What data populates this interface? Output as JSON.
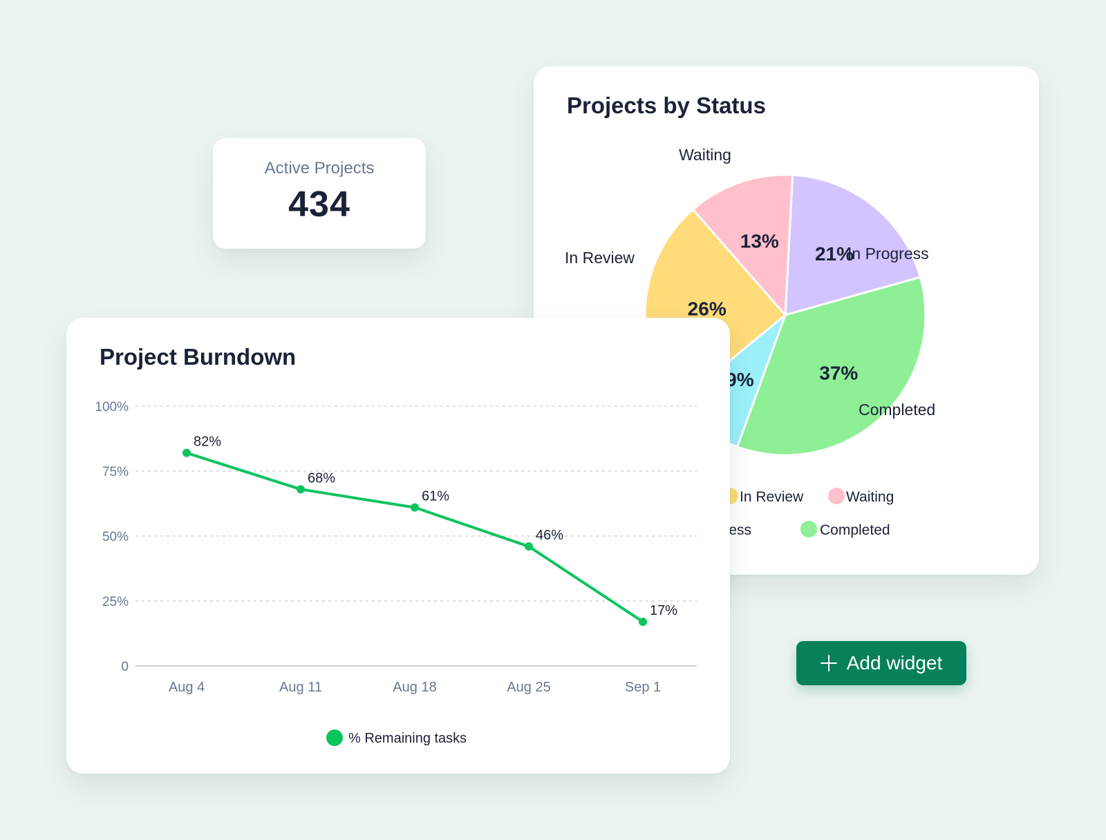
{
  "kpi": {
    "label": "Active Projects",
    "value": "434"
  },
  "pie": {
    "title": "Projects by Status",
    "legend_row1": [
      {
        "label": "In Review",
        "color": "#FFDB7A"
      },
      {
        "label": "Waiting",
        "color": "#FFC0CB"
      }
    ],
    "legend_row2": [
      {
        "label": "ogress",
        "color": "#D3C4FF"
      },
      {
        "label": "Completed",
        "color": "#8EEF97"
      }
    ]
  },
  "burndown": {
    "title": "Project Burndown",
    "legend": {
      "label": "% Remaining tasks",
      "color": "#0CC45E"
    }
  },
  "add_widget": {
    "label": "Add widget"
  },
  "chart_data": [
    {
      "type": "pie",
      "title": "Projects by Status",
      "slices": [
        {
          "name": "In Progress",
          "value": 21,
          "label": "21%",
          "color": "#D3C4FF"
        },
        {
          "name": "Completed",
          "value": 37,
          "label": "37%",
          "color": "#8EEF97"
        },
        {
          "name": "",
          "value": 9,
          "label": "9%",
          "color": "#9BF0FA"
        },
        {
          "name": "In Review",
          "value": 26,
          "label": "26%",
          "color": "#FFDB7A"
        },
        {
          "name": "Waiting",
          "value": 13,
          "label": "13%",
          "color": "#FFC0CB"
        }
      ],
      "legend_placement": "bottom"
    },
    {
      "type": "line",
      "title": "Project Burndown",
      "x": [
        "Aug 4",
        "Aug 11",
        "Aug 18",
        "Aug 25",
        "Sep 1"
      ],
      "series": [
        {
          "name": "% Remaining tasks",
          "values": [
            82,
            68,
            61,
            46,
            17
          ],
          "labels": [
            "82%",
            "68%",
            "61%",
            "46%",
            "17%"
          ],
          "color": "#0CC45E"
        }
      ],
      "ylim": [
        0,
        100
      ],
      "yticks": [
        0,
        25,
        50,
        75,
        100
      ],
      "ytick_labels": [
        "0",
        "25%",
        "50%",
        "75%",
        "100%"
      ],
      "grid": true,
      "legend_placement": "bottom"
    }
  ]
}
